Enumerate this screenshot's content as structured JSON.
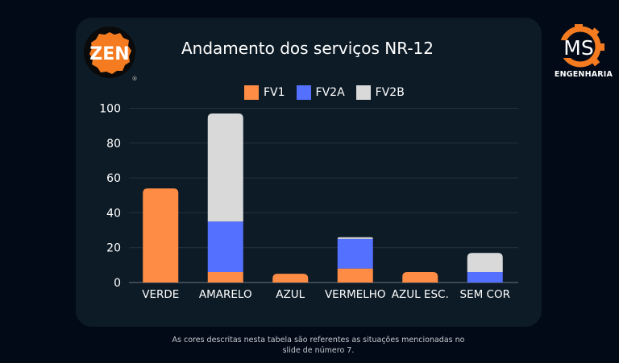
{
  "brand": {
    "left_logo_text": "ZEN",
    "left_logo_mark": "®",
    "right_logo_text": "MS",
    "right_logo_caption": "ENGENHARIA"
  },
  "colors": {
    "background": "#020a17",
    "card": "#0d1b26",
    "FV1": "#ff8c45",
    "FV2A": "#5470ff",
    "FV2B": "#d9d9d9",
    "grid": "#26323d",
    "brand_orange": "#f47b20"
  },
  "footnote": {
    "line1": "As cores descritas nesta tabela são referentes as situações mencionadas no",
    "line2": "slide de número 7."
  },
  "chart_data": {
    "type": "bar",
    "stacked": true,
    "title": "Andamento dos serviços NR-12",
    "xlabel": "",
    "ylabel": "",
    "categories": [
      "VERDE",
      "AMARELO",
      "AZUL",
      "VERMELHO",
      "AZUL ESC.",
      "SEM COR"
    ],
    "series": [
      {
        "name": "FV1",
        "values": [
          54,
          6,
          5,
          8,
          6,
          0
        ]
      },
      {
        "name": "FV2A",
        "values": [
          0,
          29,
          0,
          17,
          0,
          6
        ]
      },
      {
        "name": "FV2B",
        "values": [
          0,
          62,
          0,
          1,
          0,
          11
        ]
      }
    ],
    "ylim": [
      0,
      100
    ],
    "yticks": [
      0,
      20,
      40,
      60,
      80,
      100
    ],
    "grid": true,
    "legend": "top-center"
  }
}
